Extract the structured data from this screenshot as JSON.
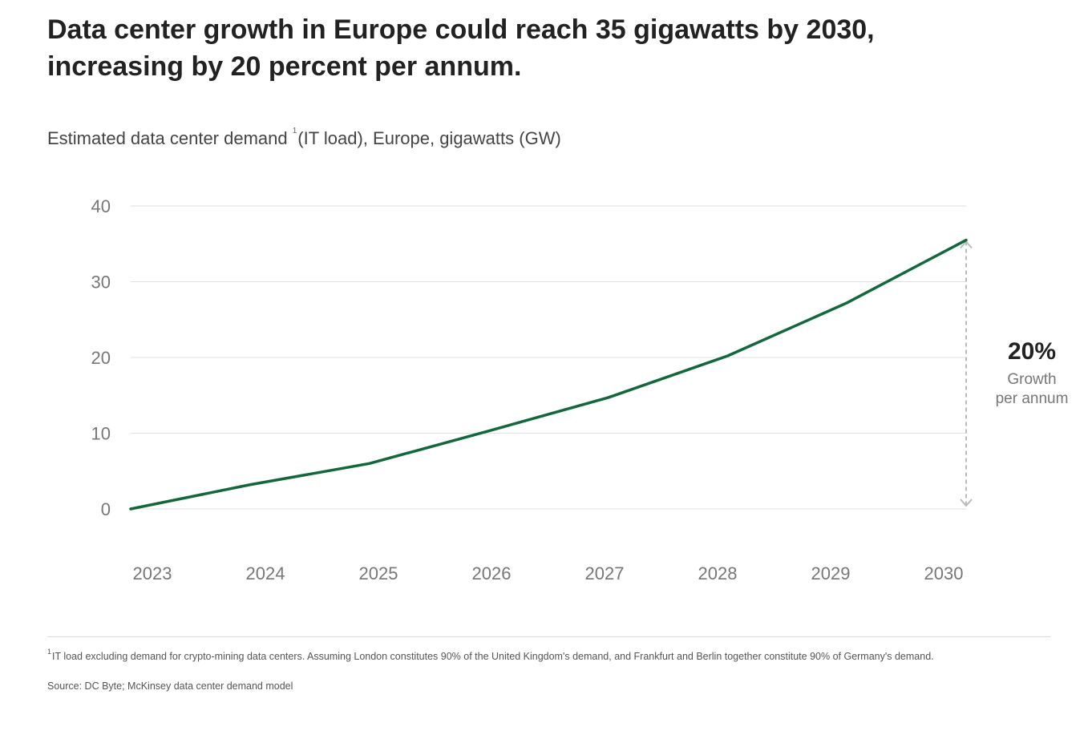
{
  "title": "Data center growth in Europe could reach 35 gigawatts by 2030, increasing by 20 percent per annum.",
  "subtitle": {
    "text_before": "Estimated data center demand ",
    "footnote_marker": "1",
    "text_after": "(IT load), Europe, gigawatts (GW)"
  },
  "callout": {
    "value": "20%",
    "label_line1": "Growth",
    "label_line2": "per annum"
  },
  "footnote": {
    "marker": "1",
    "text": "IT load excluding demand for crypto-mining data centers. Assuming London constitutes 90% of the United Kingdom's demand, and Frankfurt and Berlin together constitute 90% of Germany's demand."
  },
  "source": "Source: DC Byte; McKinsey data center demand model",
  "chart_data": {
    "type": "line",
    "x": [
      2023,
      2024,
      2025,
      2026,
      2027,
      2028,
      2029,
      2030
    ],
    "series": [
      {
        "values": [
          0,
          3.2,
          6.0,
          10.3,
          14.7,
          20.2,
          27.2,
          35.5
        ],
        "color": "#12683a"
      }
    ],
    "y_ticks": [
      0,
      10,
      20,
      30,
      40
    ],
    "x_ticks": [
      "2023",
      "2024",
      "2025",
      "2026",
      "2027",
      "2028",
      "2029",
      "2030"
    ],
    "ylim": [
      0,
      40
    ],
    "xlim": [
      2023,
      2030
    ],
    "grid": "horizontal",
    "gridline_color": "#e0e0e0",
    "annotation_arrow_color": "#bbbbbb"
  }
}
